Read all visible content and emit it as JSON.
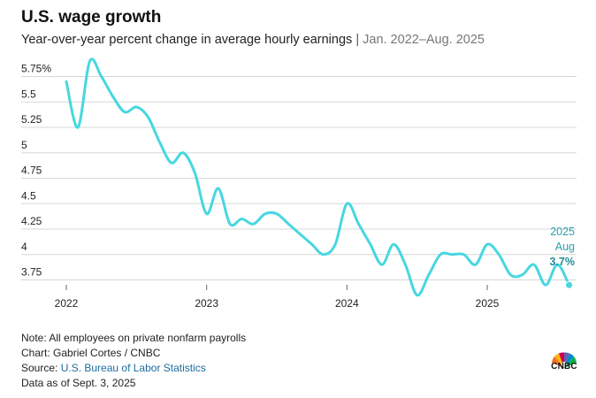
{
  "header": {
    "title": "U.S. wage growth",
    "subtitle": "Year-over-year percent change in average hourly earnings",
    "separator": "|",
    "date_range": "Jan. 2022–Aug. 2025"
  },
  "chart_data": {
    "type": "line",
    "title": "U.S. wage growth",
    "subtitle": "Year-over-year percent change in average hourly earnings | Jan. 2022–Aug. 2025",
    "xlabel": "",
    "ylabel": "",
    "ylim": [
      3.65,
      5.95
    ],
    "yticks": [
      3.75,
      4,
      4.25,
      4.5,
      4.75,
      5,
      5.25,
      5.5,
      5.75
    ],
    "ytick_labels": [
      "3.75",
      "4",
      "4.25",
      "4.5",
      "4.75",
      "5",
      "5.25",
      "5.5",
      "5.75%"
    ],
    "xticks": [
      2022,
      2023,
      2024,
      2025
    ],
    "xtick_labels": [
      "2022",
      "2023",
      "2024",
      "2025"
    ],
    "grid": true,
    "series": [
      {
        "name": "Average hourly earnings, YoY % change",
        "color": "#47d7e0",
        "x": [
          "2022-01",
          "2022-02",
          "2022-03",
          "2022-04",
          "2022-05",
          "2022-06",
          "2022-07",
          "2022-08",
          "2022-09",
          "2022-10",
          "2022-11",
          "2022-12",
          "2023-01",
          "2023-02",
          "2023-03",
          "2023-04",
          "2023-05",
          "2023-06",
          "2023-07",
          "2023-08",
          "2023-09",
          "2023-10",
          "2023-11",
          "2023-12",
          "2024-01",
          "2024-02",
          "2024-03",
          "2024-04",
          "2024-05",
          "2024-06",
          "2024-07",
          "2024-08",
          "2024-09",
          "2024-10",
          "2024-11",
          "2024-12",
          "2025-01",
          "2025-02",
          "2025-03",
          "2025-04",
          "2025-05",
          "2025-06",
          "2025-07",
          "2025-08"
        ],
        "values": [
          5.7,
          5.25,
          5.9,
          5.75,
          5.55,
          5.4,
          5.45,
          5.35,
          5.1,
          4.9,
          5.0,
          4.8,
          4.4,
          4.65,
          4.3,
          4.35,
          4.3,
          4.4,
          4.4,
          4.3,
          4.2,
          4.1,
          4.0,
          4.1,
          4.5,
          4.3,
          4.1,
          3.9,
          4.1,
          3.9,
          3.6,
          3.8,
          4.0,
          4.0,
          4.0,
          3.9,
          4.1,
          4.0,
          3.8,
          3.8,
          3.9,
          3.7,
          3.9,
          3.7
        ]
      }
    ],
    "annotation": {
      "year": "2025",
      "month": "Aug",
      "value_label": "3.7%"
    },
    "colors": {
      "line": "#47d7e0",
      "annotation_text": "#2aa3ae",
      "annotation_value": "#1f8d97",
      "grid": "#d7d7d7"
    }
  },
  "footer": {
    "note": "Note: All employees on private nonfarm payrolls",
    "chart_credit": "Chart: Gabriel Cortes / CNBC",
    "source_prefix": "Source: ",
    "source_link": "U.S. Bureau of Labor Statistics",
    "data_as_of": "Data as of Sept. 3, 2025"
  },
  "logo": {
    "text": "CNBC",
    "icon": "peacock-icon"
  }
}
